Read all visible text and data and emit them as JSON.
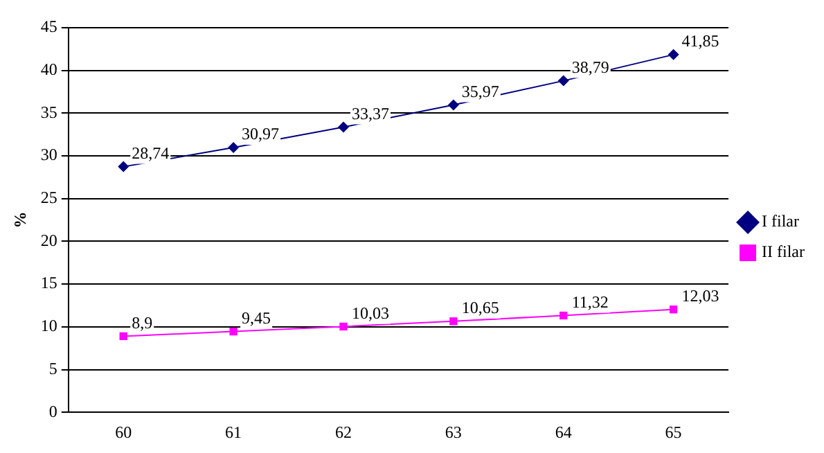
{
  "chart_data": {
    "type": "line",
    "ylabel": "%",
    "categories": [
      "60",
      "61",
      "62",
      "63",
      "64",
      "65"
    ],
    "series": [
      {
        "name": "I filar",
        "color": "#000080",
        "marker": "diamond",
        "values": [
          28.74,
          30.97,
          33.37,
          35.97,
          38.79,
          41.85
        ],
        "value_labels": [
          "28,74",
          "30,97",
          "33,37",
          "35,97",
          "38,79",
          "41,85"
        ]
      },
      {
        "name": "II filar",
        "color": "#ff00ff",
        "marker": "square",
        "values": [
          8.9,
          9.45,
          10.03,
          10.65,
          11.32,
          12.03
        ],
        "value_labels": [
          "8,9",
          "9,45",
          "10,03",
          "10,65",
          "11,32",
          "12,03"
        ]
      }
    ],
    "ylim": [
      0,
      45
    ],
    "yticks": [
      0,
      5,
      10,
      15,
      20,
      25,
      30,
      35,
      40,
      45
    ],
    "grid": "y",
    "legend": "right",
    "line_style": "solid"
  }
}
